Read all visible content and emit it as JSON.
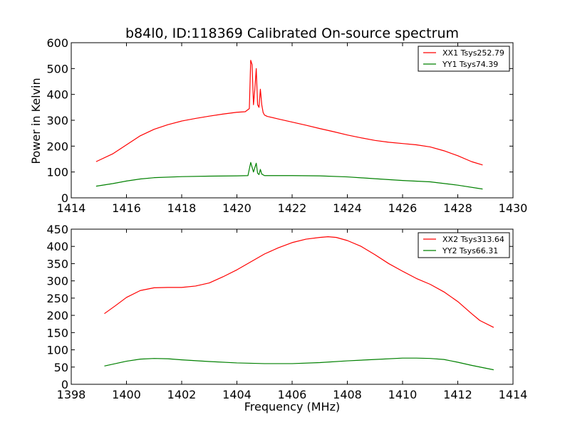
{
  "chart_data": [
    {
      "type": "line",
      "title": "b84l0, ID:118369 Calibrated On-source spectrum",
      "xlabel": "",
      "ylabel": "Power in Kelvin",
      "xlim": [
        1414,
        1430
      ],
      "ylim": [
        0,
        600
      ],
      "xticks": [
        1414,
        1416,
        1418,
        1420,
        1422,
        1424,
        1426,
        1428,
        1430
      ],
      "yticks": [
        0,
        100,
        200,
        300,
        400,
        500,
        600
      ],
      "legend": "top-right",
      "series": [
        {
          "name": "XX1 Tsys252.79",
          "color": "#ff0000",
          "x": [
            1414.9,
            1415.5,
            1416.0,
            1416.5,
            1417.0,
            1417.5,
            1418.0,
            1418.5,
            1419.0,
            1419.5,
            1420.0,
            1420.3,
            1420.45,
            1420.5,
            1420.55,
            1420.6,
            1420.65,
            1420.7,
            1420.75,
            1420.8,
            1420.85,
            1420.9,
            1420.95,
            1421.0,
            1421.1,
            1421.5,
            1422.0,
            1422.5,
            1423.0,
            1423.5,
            1424.0,
            1424.5,
            1425.0,
            1425.5,
            1426.0,
            1426.5,
            1427.0,
            1427.5,
            1428.0,
            1428.5,
            1428.9
          ],
          "y": [
            140,
            170,
            205,
            240,
            265,
            283,
            297,
            307,
            316,
            324,
            331,
            333,
            345,
            532,
            515,
            360,
            420,
            500,
            360,
            350,
            420,
            360,
            330,
            320,
            315,
            305,
            293,
            281,
            268,
            256,
            243,
            232,
            222,
            215,
            210,
            205,
            197,
            182,
            163,
            140,
            127
          ]
        },
        {
          "name": "YY1 Tsys74.39",
          "color": "#008000",
          "x": [
            1414.9,
            1415.5,
            1416.0,
            1416.5,
            1417.0,
            1418.0,
            1419.0,
            1420.0,
            1420.4,
            1420.5,
            1420.6,
            1420.7,
            1420.75,
            1420.8,
            1420.85,
            1420.9,
            1421.0,
            1421.1,
            1422.0,
            1423.0,
            1424.0,
            1425.0,
            1426.0,
            1427.0,
            1428.0,
            1428.9
          ],
          "y": [
            45,
            55,
            65,
            73,
            78,
            82,
            84,
            85,
            86,
            137,
            100,
            134,
            95,
            90,
            110,
            92,
            86,
            86,
            86,
            85,
            81,
            74,
            67,
            62,
            49,
            34
          ]
        }
      ]
    },
    {
      "type": "line",
      "title": "",
      "xlabel": "Frequency (MHz)",
      "ylabel": "",
      "xlim": [
        1398,
        1414
      ],
      "ylim": [
        0,
        450
      ],
      "xticks": [
        1398,
        1400,
        1402,
        1404,
        1406,
        1408,
        1410,
        1412,
        1414
      ],
      "yticks": [
        0,
        50,
        100,
        150,
        200,
        250,
        300,
        350,
        400,
        450
      ],
      "legend": "top-right",
      "series": [
        {
          "name": "XX2 Tsys313.64",
          "color": "#ff0000",
          "x": [
            1399.2,
            1399.6,
            1400.0,
            1400.5,
            1401.0,
            1401.5,
            1402.0,
            1402.5,
            1403.0,
            1403.5,
            1404.0,
            1404.5,
            1405.0,
            1405.5,
            1406.0,
            1406.5,
            1407.0,
            1407.3,
            1407.6,
            1408.0,
            1408.5,
            1409.0,
            1409.5,
            1410.0,
            1410.5,
            1411.0,
            1411.5,
            1412.0,
            1412.5,
            1412.8,
            1413.3
          ],
          "y": [
            205,
            228,
            252,
            272,
            280,
            281,
            281,
            285,
            294,
            312,
            332,
            355,
            378,
            396,
            411,
            421,
            426,
            428,
            426,
            417,
            400,
            376,
            350,
            328,
            307,
            290,
            268,
            240,
            205,
            185,
            165
          ]
        },
        {
          "name": "YY2 Tsys66.31",
          "color": "#008000",
          "x": [
            1399.2,
            1399.6,
            1400.0,
            1400.5,
            1401.0,
            1401.5,
            1402.0,
            1403.0,
            1404.0,
            1405.0,
            1406.0,
            1407.0,
            1408.0,
            1409.0,
            1410.0,
            1410.5,
            1411.0,
            1411.5,
            1412.0,
            1412.5,
            1413.3
          ],
          "y": [
            53,
            60,
            67,
            73,
            75,
            74,
            71,
            66,
            62,
            60,
            60,
            63,
            68,
            72,
            76,
            76,
            75,
            72,
            64,
            55,
            42
          ]
        }
      ]
    }
  ]
}
